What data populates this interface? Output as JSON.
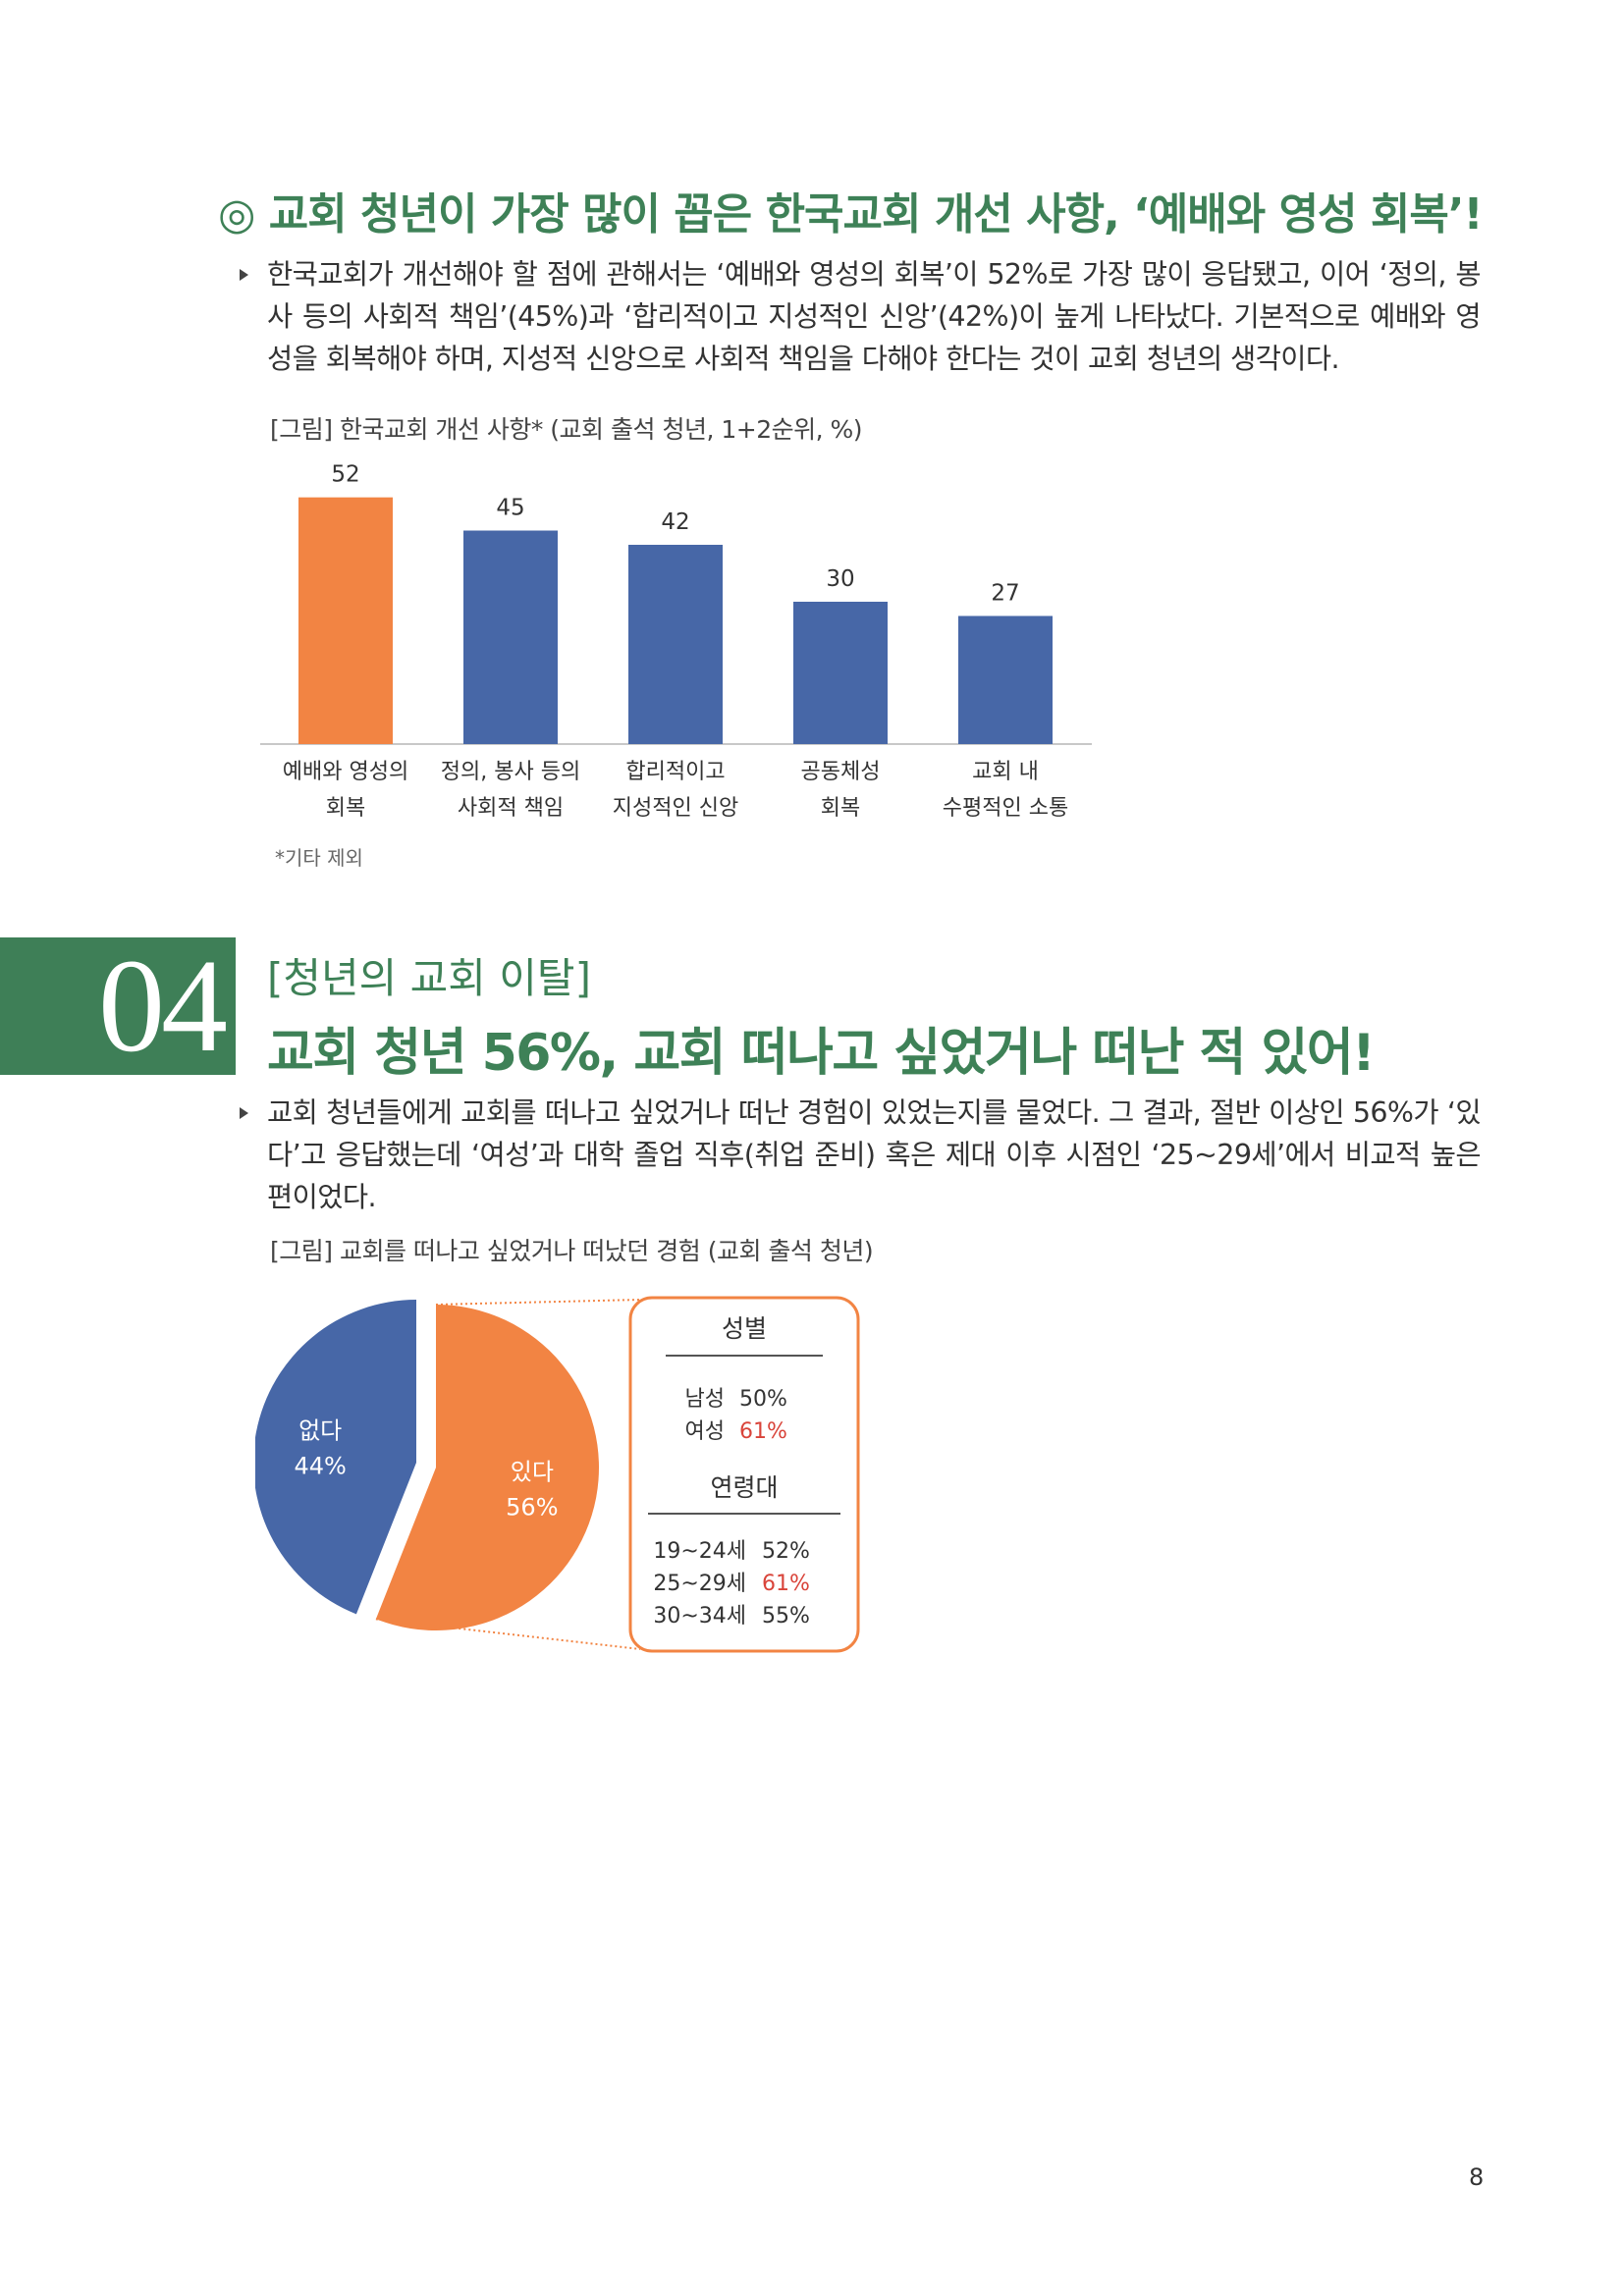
{
  "section_title": "◎ 교회 청년이 가장 많이 꼽은 한국교회 개선 사항, ‘예배와 영성 회복’!",
  "para1": "한국교회가 개선해야 할 점에 관해서는 ‘예배와 영성의 회복’이 52%로 가장 많이 응답됐고, 이어 ‘정의, 봉사 등의 사회적 책임’(45%)과 ‘합리적이고 지성적인 신앙’(42%)이 높게 나타났다. 기본적으로 예배와 영성을 회복해야 하며, 지성적 신앙으로 사회적 책임을 다해야 한다는 것이 교회 청년의 생각이다.",
  "fig1_caption": "[그림] 한국교회 개선 사항* (교회 출석 청년, 1+2순위, %)",
  "chart_data": {
    "type": "bar",
    "categories": [
      [
        "예배와 영성의",
        "회복"
      ],
      [
        "정의, 봉사 등의",
        "사회적 책임"
      ],
      [
        "합리적이고",
        "지성적인 신앙"
      ],
      [
        "공동체성",
        "회복"
      ],
      [
        "교회 내",
        "수평적인 소통"
      ]
    ],
    "values": [
      52,
      45,
      42,
      30,
      27
    ],
    "colors": [
      "#f28443",
      "#4767a7",
      "#4767a7",
      "#4767a7",
      "#4767a7"
    ],
    "ylim": [
      0,
      60
    ]
  },
  "footnote": "*기타 제외",
  "section_number": "04",
  "sub_heading": "[청년의 교회 이탈]",
  "main_heading": "교회 청년 56%, 교회 떠나고 싶었거나 떠난 적 있어!",
  "para2": "교회 청년들에게 교회를 떠나고 싶었거나 떠난 경험이 있었는지를 물었다. 그 결과, 절반 이상인 56%가 ‘있다’고 응답했는데 ‘여성’과 대학 졸업 직후(취업 준비) 혹은 제대 이후 시점인 ‘25~29세’에서 비교적 높은 편이었다.",
  "fig2_caption": "[그림] 교회를 떠나고 싶었거나 떠났던 경험 (교회 출석 청년)",
  "pie_data": {
    "type": "pie",
    "slices": [
      {
        "label": "없다",
        "value": 44,
        "display": "44%",
        "color": "#4767a7"
      },
      {
        "label": "있다",
        "value": 56,
        "display": "56%",
        "color": "#f28443"
      }
    ]
  },
  "breakdown": {
    "gender_title": "성별",
    "gender": [
      {
        "label": "남성",
        "value": "50%",
        "highlight": false
      },
      {
        "label": "여성",
        "value": "61%",
        "highlight": true
      }
    ],
    "age_title": "연령대",
    "age": [
      {
        "label": "19~24세",
        "value": "52%",
        "highlight": false
      },
      {
        "label": "25~29세",
        "value": "61%",
        "highlight": true
      },
      {
        "label": "30~34세",
        "value": "55%",
        "highlight": false
      }
    ],
    "highlight_color": "#d9443a"
  },
  "page_number": "8"
}
